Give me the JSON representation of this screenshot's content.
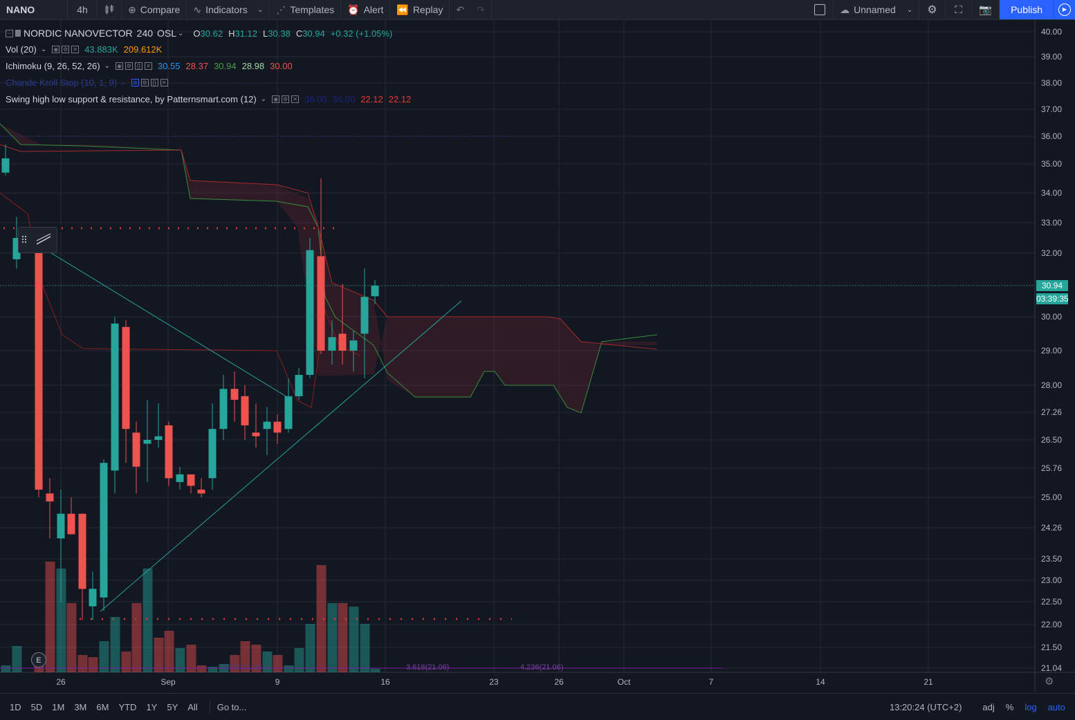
{
  "toolbar": {
    "symbol": "NANO",
    "interval": "4h",
    "compare": "Compare",
    "indicators": "Indicators",
    "templates": "Templates",
    "alert": "Alert",
    "replay": "Replay",
    "layout_name": "Unnamed",
    "publish": "Publish"
  },
  "legend": {
    "title": "NORDIC NANOVECTOR",
    "interval": "240",
    "exchange": "OSL",
    "o_label": "O",
    "o": "30.62",
    "h_label": "H",
    "h": "31.12",
    "l_label": "L",
    "l": "30.38",
    "c_label": "C",
    "c": "30.94",
    "change": "+0.32 (+1.05%)",
    "vol_name": "Vol (20)",
    "vol_1": "43.883K",
    "vol_2": "209.612K",
    "ichimoku_name": "Ichimoku (9, 26, 52, 26)",
    "ich_1": "30.55",
    "ich_2": "28.37",
    "ich_3": "30.94",
    "ich_4": "28.98",
    "ich_5": "30.00",
    "chande_name": "Chande Kroll Stop (10, 1, 9)",
    "swing_name": "Swing high low support & resistance, by Patternsmart.com (12)",
    "sw_1": "36.00",
    "sw_2": "36.00",
    "sw_3": "22.12",
    "sw_4": "22.12"
  },
  "price_tag": {
    "price": "30.94",
    "countdown": "03:39:35"
  },
  "fib_labels": [
    "2.618(21.06)",
    "3.618(21.06)",
    "4.236(21.06)"
  ],
  "earnings_marker": "E",
  "bottom": {
    "ranges": [
      "1D",
      "5D",
      "1M",
      "3M",
      "6M",
      "YTD",
      "1Y",
      "5Y",
      "All"
    ],
    "goto": "Go to...",
    "clock": "13:20:24 (UTC+2)",
    "adj": "adj",
    "percent": "%",
    "log": "log",
    "auto": "auto"
  },
  "colors": {
    "up": "#26a69a",
    "down": "#ef5350",
    "bg": "#131722",
    "accent": "#2962ff"
  },
  "chart_data": {
    "type": "candlestick",
    "y_ticks": [
      "40.00",
      "39.00",
      "38.00",
      "37.00",
      "36.00",
      "35.00",
      "34.00",
      "33.00",
      "32.00",
      "30.94",
      "30.00",
      "29.00",
      "28.00",
      "27.26",
      "26.50",
      "25.76",
      "25.00",
      "24.26",
      "23.50",
      "23.00",
      "22.50",
      "22.00",
      "21.50",
      "21.04"
    ],
    "y_tick_values": [
      40,
      39,
      38,
      37,
      36,
      35,
      34,
      33,
      32,
      30.94,
      30,
      29,
      28,
      27.26,
      26.5,
      25.76,
      25,
      24.26,
      23.5,
      23,
      22.5,
      22,
      21.5,
      21.04
    ],
    "x_ticks": [
      "26",
      "Sep",
      "9",
      "16",
      "23",
      "26",
      "Oct",
      "7",
      "14",
      "21"
    ],
    "ylim": [
      21.04,
      40.0
    ],
    "log_scale": true,
    "candles": [
      {
        "o": 34.7,
        "h": 35.7,
        "l": 34.6,
        "c": 35.2
      },
      {
        "o": 31.8,
        "h": 33.2,
        "l": 31.5,
        "c": 32.5
      },
      {
        "o": 32.0,
        "h": 32.2,
        "l": 25.0,
        "c": 25.2
      },
      {
        "o": 25.1,
        "h": 25.5,
        "l": 24.0,
        "c": 24.9
      },
      {
        "o": 24.0,
        "h": 25.2,
        "l": 22.5,
        "c": 24.6
      },
      {
        "o": 24.6,
        "h": 25.0,
        "l": 24.1,
        "c": 24.1
      },
      {
        "o": 24.6,
        "h": 24.6,
        "l": 22.1,
        "c": 22.8
      },
      {
        "o": 22.4,
        "h": 23.2,
        "l": 22.1,
        "c": 22.8
      },
      {
        "o": 22.6,
        "h": 26.0,
        "l": 22.3,
        "c": 25.9
      },
      {
        "o": 25.7,
        "h": 30.0,
        "l": 25.1,
        "c": 29.8
      },
      {
        "o": 29.7,
        "h": 29.9,
        "l": 25.9,
        "c": 26.8
      },
      {
        "o": 26.7,
        "h": 27.0,
        "l": 25.1,
        "c": 25.8
      },
      {
        "o": 26.4,
        "h": 27.6,
        "l": 25.4,
        "c": 26.5
      },
      {
        "o": 26.5,
        "h": 27.5,
        "l": 26.3,
        "c": 26.6
      },
      {
        "o": 26.9,
        "h": 27.0,
        "l": 25.3,
        "c": 25.5
      },
      {
        "o": 25.4,
        "h": 25.8,
        "l": 25.2,
        "c": 25.6
      },
      {
        "o": 25.6,
        "h": 25.6,
        "l": 25.1,
        "c": 25.3
      },
      {
        "o": 25.2,
        "h": 25.5,
        "l": 25.0,
        "c": 25.1
      },
      {
        "o": 25.5,
        "h": 27.5,
        "l": 25.2,
        "c": 26.8
      },
      {
        "o": 26.8,
        "h": 28.3,
        "l": 26.5,
        "c": 27.9
      },
      {
        "o": 27.9,
        "h": 28.4,
        "l": 27.0,
        "c": 27.6
      },
      {
        "o": 27.7,
        "h": 28.0,
        "l": 26.5,
        "c": 26.9
      },
      {
        "o": 26.7,
        "h": 27.5,
        "l": 26.3,
        "c": 26.6
      },
      {
        "o": 26.8,
        "h": 27.4,
        "l": 26.1,
        "c": 27.0
      },
      {
        "o": 27.0,
        "h": 27.2,
        "l": 26.4,
        "c": 26.7
      },
      {
        "o": 26.8,
        "h": 28.2,
        "l": 26.7,
        "c": 27.7
      },
      {
        "o": 27.7,
        "h": 28.5,
        "l": 27.6,
        "c": 28.3
      },
      {
        "o": 28.3,
        "h": 32.5,
        "l": 28.2,
        "c": 32.1
      },
      {
        "o": 31.9,
        "h": 34.5,
        "l": 28.9,
        "c": 29.0
      },
      {
        "o": 29.0,
        "h": 29.9,
        "l": 28.6,
        "c": 29.4
      },
      {
        "o": 29.5,
        "h": 31.0,
        "l": 28.6,
        "c": 29.0
      },
      {
        "o": 29.0,
        "h": 29.6,
        "l": 28.4,
        "c": 29.3
      },
      {
        "o": 29.5,
        "h": 31.5,
        "l": 28.2,
        "c": 30.6
      },
      {
        "o": 30.62,
        "h": 31.12,
        "l": 30.38,
        "c": 30.94
      }
    ],
    "volume_up": [
      true,
      true,
      false,
      false,
      true,
      false,
      false,
      false,
      true,
      true,
      false,
      false,
      true,
      false,
      false,
      true,
      false,
      false,
      true,
      true,
      false,
      false,
      false,
      true,
      false,
      true,
      true,
      true,
      false,
      true,
      false,
      true,
      true,
      true
    ]
  }
}
